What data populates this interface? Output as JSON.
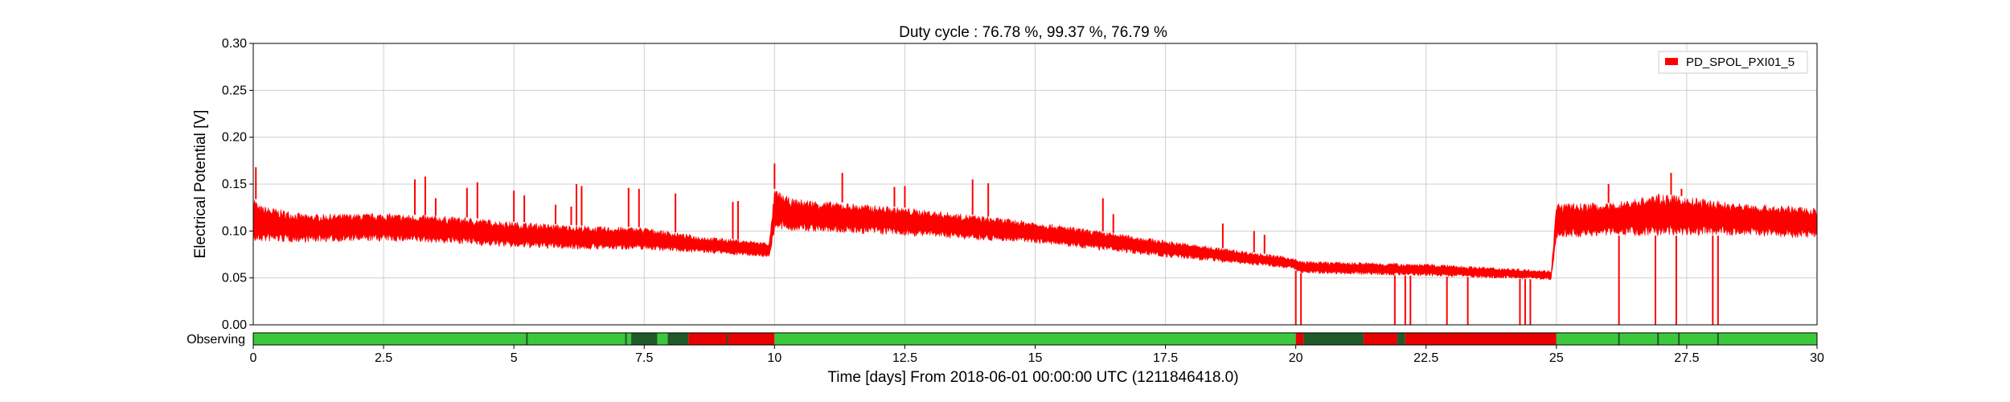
{
  "chart_data": {
    "type": "line",
    "title": "Duty cycle : 76.78 %, 99.37 %, 76.79 %",
    "xlabel": "Time [days] From 2018-06-01 00:00:00 UTC (1211846418.0)",
    "ylabel": "Electrical Potential [V]",
    "xlim": [
      0,
      30
    ],
    "ylim": [
      0,
      0.3
    ],
    "x_ticks": [
      "0",
      "2.5",
      "5",
      "7.5",
      "10",
      "12.5",
      "15",
      "17.5",
      "20",
      "22.5",
      "25",
      "27.5",
      "30"
    ],
    "y_ticks": [
      "0.00",
      "0.05",
      "0.10",
      "0.15",
      "0.20",
      "0.25",
      "0.30"
    ],
    "grid": true,
    "legend_position": "top-right",
    "series": [
      {
        "name": "PD_SPOL_PXI01_5",
        "color": "#ff0000",
        "band": [
          {
            "x": 0.0,
            "lo": 0.085,
            "hi": 0.14
          },
          {
            "x": 0.1,
            "lo": 0.088,
            "hi": 0.128
          },
          {
            "x": 1.0,
            "lo": 0.088,
            "hi": 0.118
          },
          {
            "x": 2.5,
            "lo": 0.089,
            "hi": 0.119
          },
          {
            "x": 4.0,
            "lo": 0.086,
            "hi": 0.115
          },
          {
            "x": 5.0,
            "lo": 0.082,
            "hi": 0.11
          },
          {
            "x": 6.5,
            "lo": 0.08,
            "hi": 0.105
          },
          {
            "x": 7.5,
            "lo": 0.08,
            "hi": 0.104
          },
          {
            "x": 8.5,
            "lo": 0.077,
            "hi": 0.095
          },
          {
            "x": 9.9,
            "lo": 0.072,
            "hi": 0.088
          },
          {
            "x": 10.0,
            "lo": 0.1,
            "hi": 0.145
          },
          {
            "x": 10.3,
            "lo": 0.1,
            "hi": 0.135
          },
          {
            "x": 12.5,
            "lo": 0.095,
            "hi": 0.125
          },
          {
            "x": 15.0,
            "lo": 0.087,
            "hi": 0.11
          },
          {
            "x": 17.5,
            "lo": 0.072,
            "hi": 0.09
          },
          {
            "x": 19.9,
            "lo": 0.06,
            "hi": 0.072
          },
          {
            "x": 20.1,
            "lo": 0.055,
            "hi": 0.068
          },
          {
            "x": 22.5,
            "lo": 0.052,
            "hi": 0.065
          },
          {
            "x": 24.9,
            "lo": 0.048,
            "hi": 0.058
          },
          {
            "x": 25.0,
            "lo": 0.092,
            "hi": 0.13
          },
          {
            "x": 26.0,
            "lo": 0.095,
            "hi": 0.13
          },
          {
            "x": 27.0,
            "lo": 0.095,
            "hi": 0.14
          },
          {
            "x": 28.5,
            "lo": 0.095,
            "hi": 0.13
          },
          {
            "x": 30.0,
            "lo": 0.092,
            "hi": 0.125
          }
        ],
        "spikes": [
          {
            "x": 0.05,
            "y": 0.168
          },
          {
            "x": 3.1,
            "y": 0.155
          },
          {
            "x": 3.3,
            "y": 0.158
          },
          {
            "x": 3.5,
            "y": 0.135
          },
          {
            "x": 4.1,
            "y": 0.146
          },
          {
            "x": 4.3,
            "y": 0.152
          },
          {
            "x": 5.0,
            "y": 0.143
          },
          {
            "x": 5.2,
            "y": 0.138
          },
          {
            "x": 5.8,
            "y": 0.128
          },
          {
            "x": 6.1,
            "y": 0.126
          },
          {
            "x": 6.2,
            "y": 0.15
          },
          {
            "x": 6.3,
            "y": 0.148
          },
          {
            "x": 7.2,
            "y": 0.146
          },
          {
            "x": 7.4,
            "y": 0.145
          },
          {
            "x": 8.1,
            "y": 0.14
          },
          {
            "x": 9.2,
            "y": 0.131
          },
          {
            "x": 9.3,
            "y": 0.132
          },
          {
            "x": 10.0,
            "y": 0.172
          },
          {
            "x": 11.3,
            "y": 0.162
          },
          {
            "x": 12.3,
            "y": 0.147
          },
          {
            "x": 12.5,
            "y": 0.148
          },
          {
            "x": 13.8,
            "y": 0.155
          },
          {
            "x": 14.1,
            "y": 0.151
          },
          {
            "x": 16.3,
            "y": 0.135
          },
          {
            "x": 16.5,
            "y": 0.118
          },
          {
            "x": 18.6,
            "y": 0.108
          },
          {
            "x": 19.2,
            "y": 0.1
          },
          {
            "x": 19.4,
            "y": 0.096
          },
          {
            "x": 26.0,
            "y": 0.15
          },
          {
            "x": 27.2,
            "y": 0.162
          },
          {
            "x": 27.4,
            "y": 0.145
          }
        ],
        "dropouts": [
          {
            "x": 20.0
          },
          {
            "x": 20.1
          },
          {
            "x": 21.9
          },
          {
            "x": 22.1
          },
          {
            "x": 22.2
          },
          {
            "x": 22.9
          },
          {
            "x": 23.3
          },
          {
            "x": 24.3
          },
          {
            "x": 24.4
          },
          {
            "x": 24.5
          },
          {
            "x": 26.2
          },
          {
            "x": 26.9
          },
          {
            "x": 27.3
          },
          {
            "x": 28.0
          },
          {
            "x": 28.1
          }
        ]
      }
    ],
    "segment_bar": {
      "label": "Observing",
      "segments": [
        {
          "start": 0.0,
          "end": 7.25,
          "state": "observing",
          "color": "#3cc83c"
        },
        {
          "start": 7.25,
          "end": 7.75,
          "state": "flagged",
          "color": "#1f5a28"
        },
        {
          "start": 7.75,
          "end": 7.95,
          "state": "observing",
          "color": "#3cc83c"
        },
        {
          "start": 7.95,
          "end": 8.35,
          "state": "flagged",
          "color": "#1f5a28"
        },
        {
          "start": 8.35,
          "end": 10.0,
          "state": "not-observing",
          "color": "#e60000"
        },
        {
          "start": 10.0,
          "end": 20.0,
          "state": "observing",
          "color": "#3cc83c"
        },
        {
          "start": 20.0,
          "end": 20.15,
          "state": "not-observing",
          "color": "#e60000"
        },
        {
          "start": 20.15,
          "end": 21.3,
          "state": "flagged",
          "color": "#1f5a28"
        },
        {
          "start": 21.3,
          "end": 21.95,
          "state": "not-observing",
          "color": "#e60000"
        },
        {
          "start": 21.95,
          "end": 22.1,
          "state": "flagged",
          "color": "#1f5a28"
        },
        {
          "start": 22.1,
          "end": 25.0,
          "state": "not-observing",
          "color": "#e60000"
        },
        {
          "start": 25.0,
          "end": 30.0,
          "state": "observing",
          "color": "#3cc83c"
        }
      ],
      "marks": [
        5.25,
        7.15,
        9.1,
        26.2,
        26.95,
        27.35,
        28.1
      ]
    }
  }
}
